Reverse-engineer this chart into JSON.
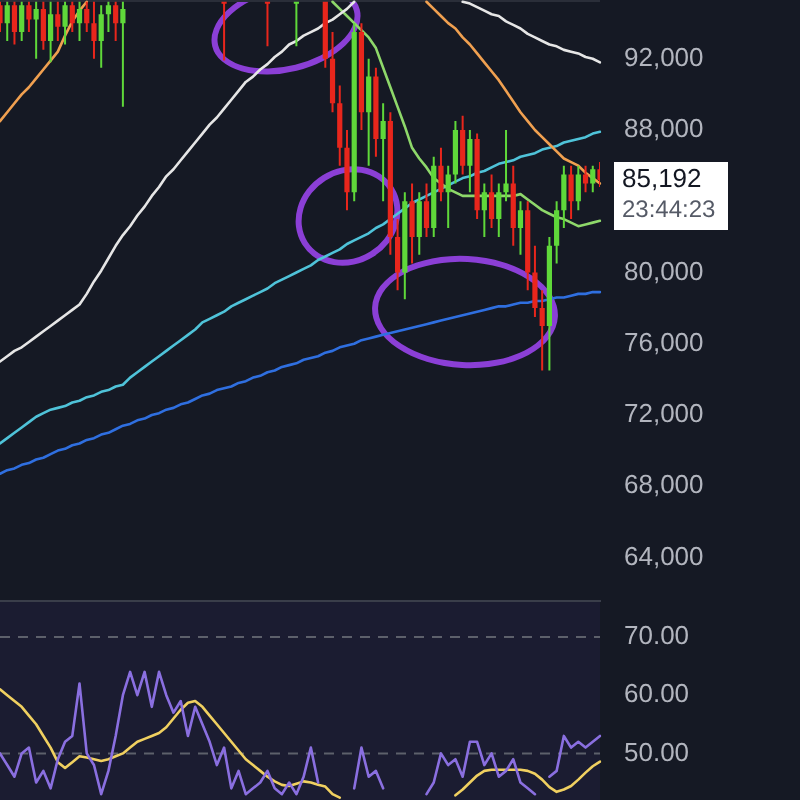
{
  "chart_data": [
    {
      "type": "candlestick",
      "tick_labels": "y",
      "grid": false,
      "marker": "none",
      "categories": [
        null,
        null,
        null,
        null,
        null,
        null,
        null,
        null,
        null,
        null,
        null,
        null,
        null,
        null,
        null,
        null,
        null,
        null,
        null,
        null,
        null,
        null,
        null,
        null,
        null,
        null,
        null,
        null,
        null,
        null,
        null,
        null,
        null,
        null,
        null,
        null,
        null,
        null,
        null,
        null,
        null,
        null,
        null,
        null,
        null,
        null,
        null,
        null,
        null,
        null,
        null,
        null,
        null,
        null,
        null,
        null,
        null,
        null,
        null,
        null,
        null,
        null,
        null,
        null,
        null,
        null,
        null,
        null,
        null,
        null,
        null,
        null,
        null,
        null,
        null,
        null,
        null,
        null,
        null,
        null,
        null,
        null,
        null,
        null
      ],
      "ylim": [
        61500,
        95300
      ],
      "yticks": [
        {
          "value": 64000,
          "label": "64,000"
        },
        {
          "value": 68000,
          "label": "68,000"
        },
        {
          "value": 72000,
          "label": "72,000"
        },
        {
          "value": 76000,
          "label": "76,000"
        },
        {
          "value": 80000,
          "label": "80,000"
        },
        {
          "value": 88000,
          "label": "88,000"
        },
        {
          "value": 92000,
          "label": "92,000"
        }
      ],
      "annotations": [
        "85,192",
        "23:44:23"
      ],
      "ohlc": [
        [
          95000,
          95200,
          93500,
          94000
        ],
        [
          94000,
          95200,
          93000,
          95000
        ],
        [
          95000,
          95200,
          92800,
          93500
        ],
        [
          93500,
          95200,
          93000,
          95000
        ],
        [
          95000,
          95200,
          93500,
          94200
        ],
        [
          94200,
          95200,
          92000,
          94800
        ],
        [
          94800,
          95200,
          92500,
          93000
        ],
        [
          93000,
          95200,
          91800,
          94500
        ],
        [
          94500,
          95200,
          93000,
          93800
        ],
        [
          93800,
          95200,
          92800,
          95000
        ],
        [
          95000,
          95200,
          93500,
          94000
        ],
        [
          94000,
          95200,
          93000,
          94800
        ],
        [
          94800,
          95200,
          93500,
          94000
        ],
        [
          94000,
          95200,
          92000,
          93000
        ],
        [
          93000,
          95000,
          91500,
          94500
        ],
        [
          94500,
          95200,
          93500,
          95000
        ],
        [
          95000,
          95200,
          93000,
          94000
        ],
        [
          94000,
          95200,
          89300,
          94800
        ],
        null,
        null,
        null,
        null,
        null,
        null,
        null,
        null,
        null,
        null,
        null,
        null,
        null,
        [
          95200,
          95200,
          91900,
          95100
        ],
        null,
        null,
        null,
        null,
        null,
        [
          95200,
          95200,
          92700,
          95100
        ],
        null,
        null,
        null,
        [
          95100,
          95200,
          92700,
          95200
        ],
        null,
        null,
        null,
        [
          95200,
          95200,
          91500,
          92000
        ],
        [
          92000,
          93500,
          89000,
          89500
        ],
        [
          89500,
          90500,
          86000,
          87000
        ],
        [
          87000,
          88000,
          83500,
          84500
        ],
        [
          84500,
          94000,
          84000,
          93500
        ],
        [
          93500,
          94000,
          88000,
          89000
        ],
        [
          89000,
          92000,
          86000,
          91000
        ],
        [
          91000,
          91500,
          86500,
          87500
        ],
        [
          87500,
          89500,
          84000,
          88500
        ],
        [
          88500,
          89000,
          81000,
          82000
        ],
        [
          82000,
          83000,
          79000,
          80000
        ],
        [
          80000,
          84500,
          78500,
          84000
        ],
        [
          84000,
          85000,
          80500,
          82000
        ],
        [
          82000,
          84500,
          81000,
          84000
        ],
        [
          84000,
          85000,
          82000,
          82500
        ],
        [
          82500,
          86500,
          82000,
          86000
        ],
        [
          86000,
          87000,
          84000,
          84500
        ],
        [
          84500,
          86000,
          82500,
          85500
        ],
        [
          85500,
          88500,
          85000,
          88000
        ],
        [
          88000,
          88800,
          85500,
          86000
        ],
        [
          86000,
          88000,
          84500,
          87500
        ],
        [
          87500,
          87800,
          83000,
          83500
        ],
        [
          83500,
          85000,
          82000,
          84500
        ],
        [
          84500,
          85500,
          82500,
          83000
        ],
        [
          83000,
          85000,
          82000,
          84500
        ],
        [
          84500,
          88000,
          84000,
          85000
        ],
        [
          85000,
          86000,
          81500,
          82500
        ],
        [
          82500,
          84000,
          81000,
          83500
        ],
        [
          83500,
          84000,
          79000,
          80000
        ],
        [
          80000,
          81500,
          77500,
          78000
        ],
        [
          78000,
          79000,
          74500,
          77000
        ],
        [
          77000,
          82000,
          74500,
          81500
        ],
        [
          81500,
          84000,
          80500,
          83500
        ],
        [
          83500,
          86000,
          82500,
          85500
        ],
        [
          85500,
          86000,
          83000,
          84000
        ],
        [
          84000,
          86000,
          83500,
          85500
        ],
        [
          85500,
          86000,
          84500,
          85000
        ],
        [
          85000,
          86000,
          84500,
          85800
        ],
        [
          85800,
          86200,
          84800,
          85192
        ]
      ],
      "series": [
        {
          "type": "line",
          "color": "#e6e6e6",
          "values": [
            75000,
            75300,
            75600,
            75800,
            76100,
            76400,
            76700,
            77000,
            77300,
            77600,
            77900,
            78200,
            78800,
            79500,
            80100,
            80800,
            81500,
            82100,
            82600,
            83200,
            83700,
            84300,
            84800,
            85400,
            85800,
            86300,
            86800,
            87300,
            87800,
            88300,
            88700,
            89200,
            89700,
            90200,
            90700,
            91000,
            91400,
            91700,
            92100,
            92400,
            92800,
            93000,
            93300,
            93500,
            93700,
            94000,
            94200,
            94500,
            94800,
            95200,
            null,
            null,
            null,
            null,
            null,
            null,
            null,
            null,
            null,
            null,
            null,
            null,
            null,
            null,
            95200,
            95100,
            94900,
            94700,
            94500,
            94400,
            94100,
            93900,
            93700,
            93400,
            93200,
            93000,
            92800,
            92700,
            92500,
            92400,
            92300,
            92100,
            92000,
            91800
          ]
        },
        {
          "type": "line",
          "color": "#f0a050",
          "values": [
            88500,
            89000,
            89500,
            90000,
            90400,
            90900,
            91400,
            91900,
            92400,
            93300,
            94100,
            94700,
            95200,
            null,
            null,
            null,
            null,
            null,
            null,
            null,
            null,
            null,
            null,
            null,
            null,
            null,
            null,
            null,
            null,
            null,
            null,
            null,
            null,
            null,
            null,
            null,
            null,
            null,
            null,
            null,
            null,
            null,
            null,
            null,
            null,
            null,
            null,
            null,
            null,
            null,
            null,
            null,
            null,
            null,
            null,
            null,
            null,
            null,
            null,
            95200,
            94800,
            94400,
            94000,
            93700,
            93200,
            92800,
            92300,
            91800,
            91300,
            90800,
            90200,
            89600,
            89000,
            88500,
            88000,
            87600,
            87200,
            86800,
            86400,
            86200,
            86000,
            85600,
            85300,
            85000
          ]
        },
        {
          "type": "line",
          "color": "#8ed86a",
          "values": [
            null,
            null,
            null,
            null,
            null,
            null,
            null,
            null,
            null,
            null,
            null,
            null,
            null,
            null,
            null,
            null,
            null,
            null,
            null,
            null,
            null,
            null,
            null,
            null,
            null,
            null,
            null,
            null,
            null,
            null,
            null,
            null,
            null,
            null,
            null,
            null,
            null,
            null,
            null,
            null,
            null,
            null,
            null,
            null,
            null,
            null,
            95200,
            94800,
            94400,
            94000,
            93600,
            93200,
            92600,
            91500,
            90400,
            89300,
            88200,
            87000,
            86400,
            85900,
            85300,
            85000,
            84700,
            84500,
            84300,
            84300,
            84300,
            84300,
            84300,
            84300,
            84300,
            84300,
            84400,
            84100,
            83800,
            83500,
            83300,
            83100,
            83000,
            82800,
            82600,
            82700,
            82800,
            82900
          ]
        },
        {
          "type": "line",
          "color": "#4fc3d9",
          "values": [
            70400,
            70700,
            71000,
            71300,
            71600,
            71900,
            72100,
            72300,
            72400,
            72500,
            72700,
            72800,
            73000,
            73100,
            73300,
            73400,
            73600,
            73700,
            74100,
            74400,
            74700,
            75000,
            75300,
            75600,
            75900,
            76200,
            76500,
            76800,
            77200,
            77400,
            77600,
            77800,
            78100,
            78300,
            78500,
            78700,
            78900,
            79100,
            79400,
            79600,
            79800,
            80000,
            80200,
            80400,
            80700,
            80900,
            81100,
            81300,
            81600,
            81800,
            82000,
            82200,
            82500,
            82700,
            83000,
            83300,
            83600,
            83900,
            84100,
            84300,
            84500,
            84700,
            84900,
            85100,
            85300,
            85400,
            85600,
            85700,
            85900,
            86100,
            86200,
            86300,
            86500,
            86600,
            86700,
            86900,
            87000,
            87100,
            87300,
            87400,
            87500,
            87600,
            87800,
            87900
          ]
        },
        {
          "type": "line",
          "color": "#2f6fe0",
          "values": [
            68700,
            68900,
            69000,
            69200,
            69300,
            69500,
            69600,
            69800,
            70000,
            70100,
            70300,
            70400,
            70600,
            70700,
            70900,
            71000,
            71200,
            71400,
            71500,
            71700,
            71800,
            72000,
            72100,
            72300,
            72400,
            72600,
            72700,
            72900,
            73100,
            73200,
            73400,
            73500,
            73600,
            73800,
            73900,
            74100,
            74200,
            74400,
            74500,
            74700,
            74800,
            74900,
            75100,
            75200,
            75300,
            75500,
            75600,
            75800,
            75900,
            76000,
            76200,
            76300,
            76400,
            76500,
            76600,
            76700,
            76800,
            76900,
            77000,
            77100,
            77200,
            77300,
            77400,
            77500,
            77600,
            77700,
            77800,
            77900,
            78000,
            78100,
            78100,
            78200,
            78300,
            78300,
            78400,
            78400,
            78500,
            78600,
            78600,
            78700,
            78800,
            78800,
            78900,
            78900
          ]
        }
      ]
    },
    {
      "type": "line",
      "tick_labels": "y",
      "grid": false,
      "marker": "none",
      "categories": [
        null,
        null,
        null,
        null,
        null,
        null,
        null,
        null,
        null,
        null,
        null,
        null,
        null,
        null,
        null,
        null,
        null,
        null,
        null,
        null,
        null,
        null,
        null,
        null,
        null,
        null,
        null,
        null,
        null,
        null,
        null,
        null,
        null,
        null,
        null,
        null,
        null,
        null,
        null,
        null,
        null,
        null,
        null,
        null,
        null,
        null,
        null,
        null,
        null,
        null,
        null,
        null,
        null,
        null,
        null,
        null,
        null,
        null,
        null,
        null,
        null,
        null,
        null,
        null,
        null,
        null,
        null,
        null,
        null,
        null,
        null,
        null,
        null,
        null,
        null,
        null,
        null,
        null,
        null,
        null,
        null,
        null,
        null,
        null
      ],
      "ylim": [
        42,
        76
      ],
      "yticks": [
        {
          "value": 50,
          "label": "50.00"
        },
        {
          "value": 60,
          "label": "60.00"
        },
        {
          "value": 70,
          "label": "70.00"
        }
      ],
      "ref_lines": [
        {
          "axis": "y",
          "value": 70,
          "color": "#5d606b",
          "line_style": "dashed"
        },
        {
          "axis": "y",
          "value": 50,
          "color": "#5d606b",
          "line_style": "dashed"
        }
      ],
      "series": [
        {
          "color": "#8a6fe0",
          "values": [
            50,
            48,
            46,
            50,
            51,
            45,
            47,
            44,
            49,
            52,
            53,
            62,
            50,
            48,
            43,
            47,
            53,
            60,
            64,
            60,
            64,
            58,
            64,
            60,
            57,
            59,
            53,
            58,
            55,
            52,
            48,
            51,
            44,
            47,
            43,
            44,
            45,
            47,
            44,
            43,
            45,
            43,
            46,
            51,
            45,
            null,
            null,
            null,
            null,
            44,
            51,
            46,
            47,
            44,
            null,
            null,
            null,
            null,
            null,
            43,
            45,
            50,
            48,
            49,
            46,
            52,
            52,
            48,
            50,
            46,
            47,
            49,
            45,
            44,
            43,
            null,
            46,
            47,
            53,
            51,
            52,
            51,
            52,
            53
          ]
        },
        {
          "color": "#f0d060",
          "values": [
            61,
            60,
            59,
            58,
            56.5,
            55,
            53,
            51,
            48.5,
            47.5,
            48.5,
            49.5,
            49.3,
            49,
            48.7,
            49,
            49.5,
            50,
            51,
            52,
            52.5,
            53,
            53.5,
            54.5,
            56,
            57.5,
            58.7,
            59,
            58,
            56.5,
            55,
            53.5,
            52,
            50.5,
            49,
            48,
            47,
            46,
            45.2,
            44.6,
            44.4,
            44.8,
            45.2,
            45,
            44.6,
            44.3,
            43,
            42.4,
            null,
            null,
            null,
            null,
            null,
            null,
            null,
            null,
            null,
            null,
            null,
            null,
            null,
            null,
            null,
            42.8,
            43.8,
            45,
            46.2,
            47,
            47.2,
            47.2,
            47.2,
            47.2,
            47.2,
            47,
            46.5,
            45.5,
            44.2,
            43.4,
            43.8,
            44.4,
            45.5,
            46.7,
            47.8,
            48.6
          ]
        }
      ]
    }
  ]
}
